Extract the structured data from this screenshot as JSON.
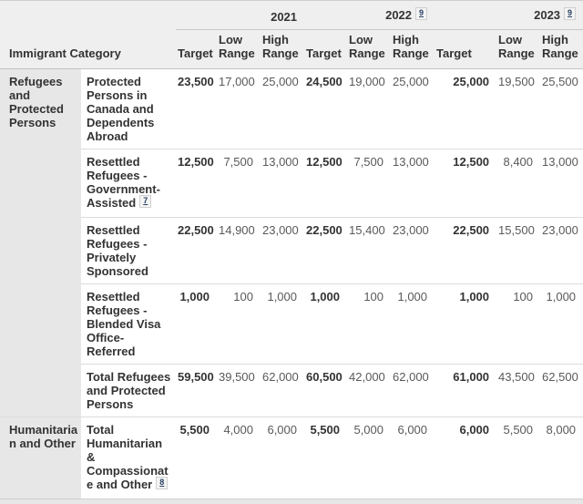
{
  "header": {
    "category_label": "Immigrant Category",
    "sub_headers": [
      "Target",
      "Low Range",
      "High Range"
    ],
    "years": [
      {
        "label": "2021"
      },
      {
        "label": "2022",
        "footnote": "9"
      },
      {
        "label": "2023",
        "footnote": "9"
      }
    ]
  },
  "rows": [
    {
      "group": "Refugees and Protected Persons",
      "group_rowspan": 5,
      "category": "Protected Persons in Canada and Dependents Abroad",
      "values": [
        "23,500",
        "17,000",
        "25,000",
        "24,500",
        "19,000",
        "25,000",
        "25,000",
        "19,500",
        "25,500"
      ]
    },
    {
      "category": "Resettled Refugees - Government-Assisted",
      "category_footnote": "7",
      "values": [
        "12,500",
        "7,500",
        "13,000",
        "12,500",
        "7,500",
        "13,000",
        "12,500",
        "8,400",
        "13,000"
      ]
    },
    {
      "category": "Resettled Refugees - Privately Sponsored",
      "values": [
        "22,500",
        "14,900",
        "23,000",
        "22,500",
        "15,400",
        "23,000",
        "22,500",
        "15,500",
        "23,000"
      ]
    },
    {
      "category": "Resettled Refugees - Blended Visa Office-Referred",
      "values": [
        "1,000",
        "100",
        "1,000",
        "1,000",
        "100",
        "1,000",
        "1,000",
        "100",
        "1,000"
      ]
    },
    {
      "category": "Total Refugees and Protected Persons",
      "values": [
        "59,500",
        "39,500",
        "62,000",
        "60,500",
        "42,000",
        "62,000",
        "61,000",
        "43,500",
        "62,500"
      ]
    },
    {
      "group": "Humanitarian and Other",
      "group_rowspan": 1,
      "category": "Total Humanitarian & Compassionate and Other",
      "category_footnote": "8",
      "values": [
        "5,500",
        "4,000",
        "6,000",
        "5,500",
        "5,000",
        "6,000",
        "6,000",
        "5,500",
        "8,000"
      ]
    }
  ],
  "ui_colors": {
    "header_bg": "#efefef",
    "group_cell_bg": "#e7e7e7",
    "footnote_link": "#284162",
    "row_border": "#dcdcdc"
  }
}
